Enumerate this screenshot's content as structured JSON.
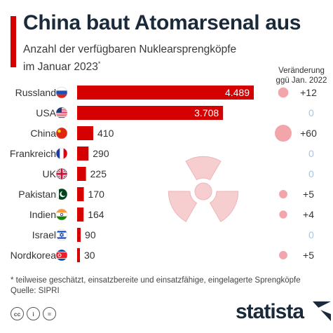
{
  "header": {
    "title": "China baut Atomarsenal aus",
    "subtitle_line1": "Anzahl der verfügbaren Nuklearsprengköpfe",
    "subtitle_line2": "im Januar 2023",
    "subtitle_mark": "*",
    "change_header_line1": "Veränderung",
    "change_header_line2": "ggü Jan. 2022"
  },
  "chart_data": {
    "type": "bar",
    "orientation": "horizontal",
    "categories": [
      "Russland",
      "USA",
      "China",
      "Frankreich",
      "UK",
      "Pakistan",
      "Indien",
      "Israel",
      "Nordkorea"
    ],
    "values": [
      4489,
      3708,
      410,
      290,
      225,
      170,
      164,
      90,
      30
    ],
    "value_labels": [
      "4.489",
      "3.708",
      "410",
      "290",
      "225",
      "170",
      "164",
      "90",
      "30"
    ],
    "changes": [
      12,
      0,
      60,
      0,
      0,
      5,
      4,
      0,
      5
    ],
    "change_labels": [
      "+12",
      "0",
      "+60",
      "0",
      "0",
      "+5",
      "+4",
      "0",
      "+5"
    ],
    "flags": [
      "russia-flag-icon",
      "usa-flag-icon",
      "china-flag-icon",
      "france-flag-icon",
      "uk-flag-icon",
      "pakistan-flag-icon",
      "india-flag-icon",
      "israel-flag-icon",
      "north-korea-flag-icon"
    ],
    "bar_color": "#d50000",
    "bubble_color": "#f2a5aa",
    "zero_color": "#a9c4de"
  },
  "footer": {
    "footnote": "* teilweise geschätzt, einsatzbereite und einsatzfähige, eingelagerte Sprengköpfe",
    "source": "Quelle: SIPRI",
    "brand": "statista",
    "license_icons": [
      "cc",
      "i",
      "="
    ]
  }
}
